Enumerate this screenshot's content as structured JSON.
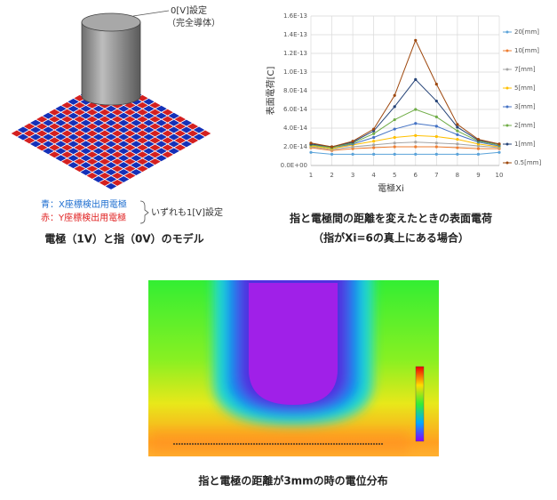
{
  "chart_data": {
    "type": "line",
    "title": "指と電極間の距離を変えたときの表面電荷",
    "subtitle": "（指がXi=6の真上にある場合）",
    "x_label": "電極Xi",
    "y_label": "表面電荷[C]",
    "x": [
      1,
      2,
      3,
      4,
      5,
      6,
      7,
      8,
      9,
      10
    ],
    "xlim": [
      1,
      10
    ],
    "xticks": [
      1,
      2,
      3,
      4,
      5,
      6,
      7,
      8,
      9,
      10
    ],
    "ylim": [
      0,
      1.6e-13
    ],
    "yticks": [
      {
        "value": 0,
        "label": "0.0E+00"
      },
      {
        "value": 2e-14,
        "label": "2.0E-14"
      },
      {
        "value": 4e-14,
        "label": "4.0E-14"
      },
      {
        "value": 6e-14,
        "label": "6.0E-14"
      },
      {
        "value": 8e-14,
        "label": "8.0E-14"
      },
      {
        "value": 1e-13,
        "label": "1.0E-13"
      },
      {
        "value": 1.2e-13,
        "label": "1.2E-13"
      },
      {
        "value": 1.4e-13,
        "label": "1.4E-13"
      },
      {
        "value": 1.6e-13,
        "label": "1.6E-13"
      }
    ],
    "grid": true,
    "legend": "right",
    "series": [
      {
        "name": "20[mm]",
        "color": "#5ba3d9",
        "values": [
          1.4e-14,
          1.2e-14,
          1.2e-14,
          1.2e-14,
          1.2e-14,
          1.2e-14,
          1.2e-14,
          1.2e-14,
          1.2e-14,
          1.4e-14
        ]
      },
      {
        "name": "10[mm]",
        "color": "#ed7d31",
        "values": [
          1.9e-14,
          1.6e-14,
          1.8e-14,
          1.9e-14,
          2e-14,
          2e-14,
          2e-14,
          1.9e-14,
          1.8e-14,
          1.8e-14
        ]
      },
      {
        "name": "7[mm]",
        "color": "#a5a5a5",
        "values": [
          2e-14,
          1.7e-14,
          2e-14,
          2.2e-14,
          2.4e-14,
          2.5e-14,
          2.4e-14,
          2.3e-14,
          2.1e-14,
          1.9e-14
        ]
      },
      {
        "name": "5[mm]",
        "color": "#ffc000",
        "values": [
          2.1e-14,
          1.8e-14,
          2.2e-14,
          2.6e-14,
          3e-14,
          3.2e-14,
          3.1e-14,
          2.8e-14,
          2.3e-14,
          2e-14
        ]
      },
      {
        "name": "3[mm]",
        "color": "#4472c4",
        "values": [
          2.2e-14,
          1.9e-14,
          2.3e-14,
          3e-14,
          3.9e-14,
          4.5e-14,
          4.2e-14,
          3.3e-14,
          2.5e-14,
          2.1e-14
        ]
      },
      {
        "name": "2[mm]",
        "color": "#70ad47",
        "values": [
          2.2e-14,
          1.9e-14,
          2.4e-14,
          3.4e-14,
          4.9e-14,
          6e-14,
          5.2e-14,
          3.7e-14,
          2.6e-14,
          2.2e-14
        ]
      },
      {
        "name": "1[mm]",
        "color": "#264478",
        "values": [
          2.3e-14,
          2e-14,
          2.5e-14,
          3.7e-14,
          6.3e-14,
          9.2e-14,
          6.9e-14,
          4.1e-14,
          2.7e-14,
          2.3e-14
        ]
      },
      {
        "name": "0.5[mm]",
        "color": "#9e480e",
        "values": [
          2.4e-14,
          2e-14,
          2.6e-14,
          3.9e-14,
          7.5e-14,
          1.34e-13,
          8.7e-14,
          4.4e-14,
          2.8e-14,
          2.3e-14
        ]
      }
    ]
  },
  "model": {
    "label_top": "0[V]設定",
    "label_top_sub": "（完全導体）",
    "legend_blue": "青：X座標検出用電極",
    "legend_red": "赤：Y座標検出用電極",
    "legend_note": "いずれも1[V]設定",
    "caption": "電極（1V）と指（0V）のモデル"
  },
  "simulation": {
    "caption": "指と電極の距離が3mmの時の電位分布"
  }
}
